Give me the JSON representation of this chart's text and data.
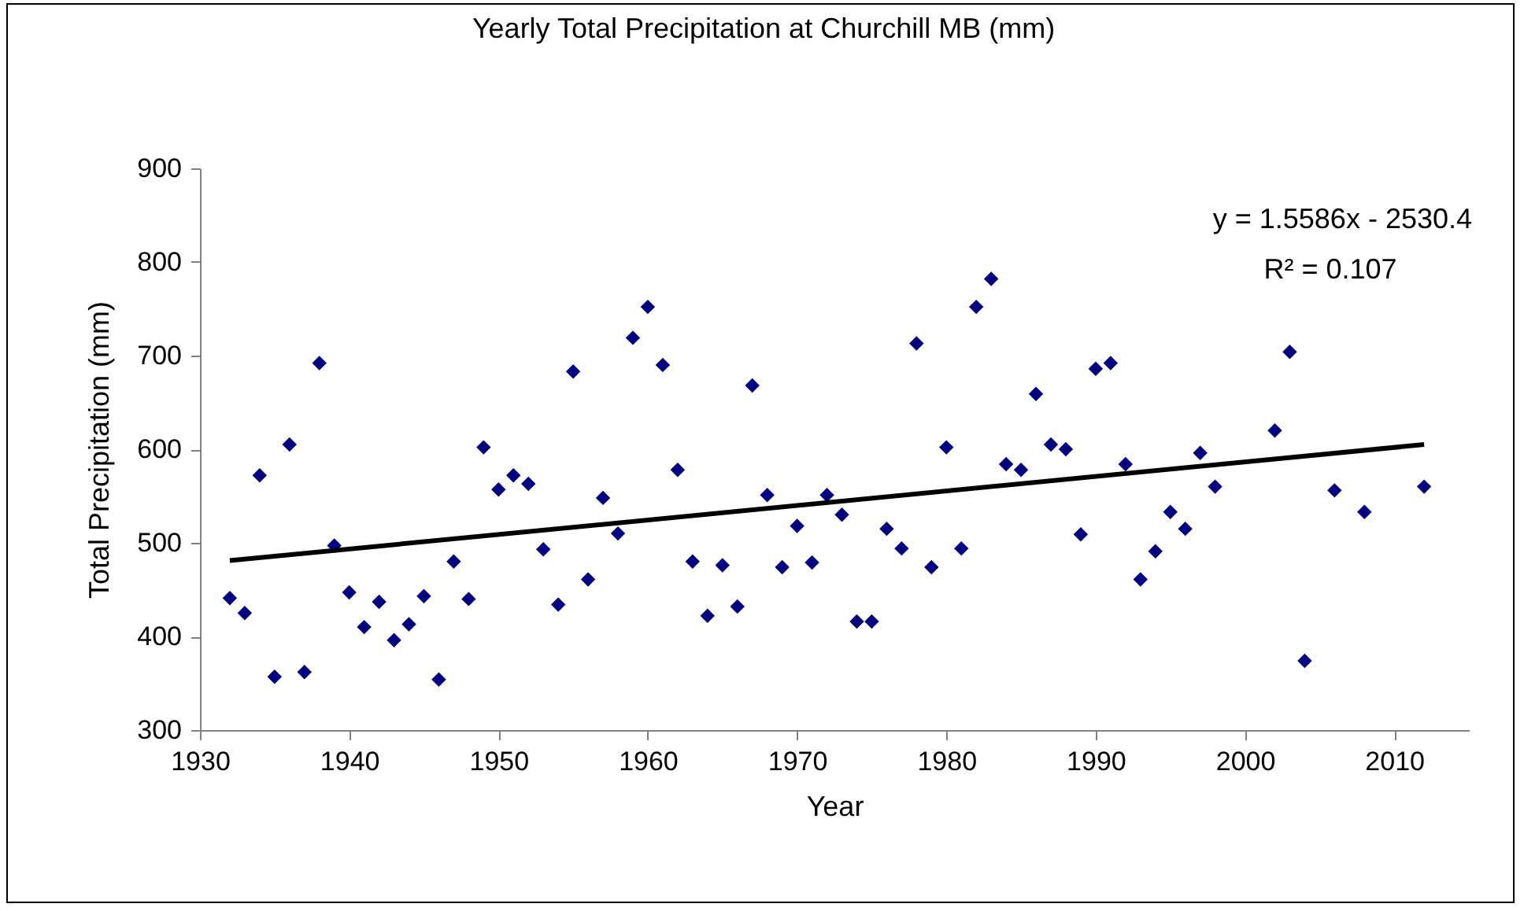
{
  "chart_data": {
    "type": "scatter",
    "title": "Yearly Total Precipitation at Churchill MB (mm)",
    "xlabel": "Year",
    "ylabel": "Total Precipitation (mm)",
    "xlim": [
      1930,
      2015
    ],
    "xticks": [
      1930,
      1940,
      1950,
      1960,
      1970,
      1980,
      1990,
      2000,
      2010
    ],
    "ylim": [
      300,
      900
    ],
    "yticks": [
      300,
      400,
      500,
      600,
      700,
      800,
      900
    ],
    "grid": false,
    "marker": "diamond",
    "annotations": [
      "y = 1.5586x - 2530.4",
      "R² = 0.107"
    ],
    "series": [
      {
        "color": "#000080",
        "x": [
          1932,
          1933,
          1934,
          1935,
          1936,
          1937,
          1938,
          1939,
          1940,
          1941,
          1942,
          1943,
          1944,
          1945,
          1946,
          1947,
          1948,
          1949,
          1950,
          1951,
          1952,
          1953,
          1954,
          1955,
          1956,
          1957,
          1958,
          1959,
          1960,
          1961,
          1962,
          1963,
          1964,
          1965,
          1966,
          1967,
          1968,
          1969,
          1970,
          1971,
          1972,
          1973,
          1974,
          1975,
          1976,
          1977,
          1978,
          1979,
          1980,
          1981,
          1982,
          1983,
          1984,
          1985,
          1986,
          1987,
          1988,
          1989,
          1990,
          1991,
          1992,
          1993,
          1994,
          1995,
          1996,
          1997,
          1998,
          2002,
          2003,
          2004,
          2006,
          2008,
          2012
        ],
        "values": [
          441,
          425,
          572,
          357,
          605,
          362,
          692,
          497,
          447,
          410,
          437,
          396,
          413,
          443,
          354,
          480,
          440,
          602,
          557,
          572,
          563,
          493,
          434,
          683,
          461,
          548,
          510,
          719,
          752,
          690,
          578,
          480,
          422,
          476,
          432,
          668,
          551,
          474,
          518,
          479,
          551,
          530,
          416,
          416,
          515,
          494,
          713,
          474,
          602,
          494,
          752,
          782,
          584,
          578,
          659,
          605,
          600,
          509,
          686,
          692,
          584,
          461,
          491,
          533,
          515,
          596,
          560,
          620,
          704,
          374,
          556,
          533,
          560
        ]
      },
      {
        "type": "line",
        "color": "#000000",
        "marker": "none",
        "line_style": "solid",
        "x": [
          1932,
          2012
        ],
        "values": [
          481,
          605
        ]
      }
    ]
  }
}
